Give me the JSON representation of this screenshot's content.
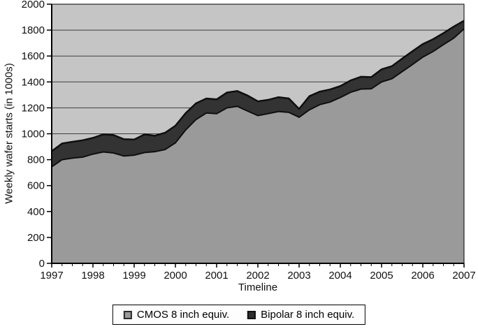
{
  "chart_data": {
    "type": "area",
    "stacked": true,
    "title": "",
    "xlabel": "Timeline",
    "ylabel": "Weekly wafer starts (in 1000s)",
    "unit": "weekly wafer starts in 1000s, 8 inch equivalent",
    "xlim": [
      1997,
      2007
    ],
    "ylim": [
      0,
      2000
    ],
    "x_start": 1997,
    "x_step": 0.25,
    "grid": true,
    "legend_position": "bottom",
    "xticks": [
      1997,
      1998,
      1999,
      2000,
      2001,
      2002,
      2003,
      2004,
      2005,
      2006,
      2007
    ],
    "yticks": [
      0,
      200,
      400,
      600,
      800,
      1000,
      1200,
      1400,
      1600,
      1800,
      2000
    ],
    "colors": {
      "plot_bg": "#c5c5c5",
      "gridline": "#3f3f3f",
      "line": "#0f0f0f",
      "axis": "#000000"
    },
    "series": [
      {
        "name": "CMOS 8 inch equiv.",
        "color": "#9a9a9a",
        "values": [
          745,
          800,
          812,
          820,
          843,
          860,
          852,
          828,
          835,
          855,
          862,
          878,
          930,
          1030,
          1110,
          1160,
          1155,
          1200,
          1212,
          1175,
          1140,
          1155,
          1172,
          1165,
          1128,
          1185,
          1225,
          1245,
          1280,
          1320,
          1345,
          1347,
          1400,
          1425,
          1480,
          1535,
          1592,
          1635,
          1688,
          1738,
          1810
        ]
      },
      {
        "name": "Bipolar 8 inch equiv.",
        "color": "#333333",
        "values": [
          120,
          125,
          126,
          130,
          125,
          135,
          138,
          130,
          120,
          140,
          123,
          130,
          132,
          130,
          125,
          112,
          110,
          118,
          118,
          120,
          110,
          107,
          110,
          107,
          64,
          105,
          100,
          97,
          88,
          92,
          95,
          90,
          97,
          97,
          100,
          102,
          100,
          95,
          89,
          89,
          62
        ]
      }
    ]
  }
}
